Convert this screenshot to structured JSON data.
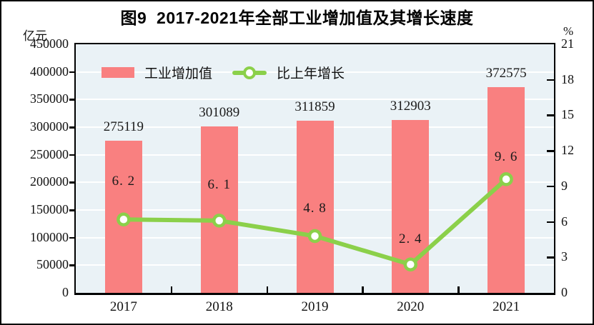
{
  "figure": {
    "title": "图9  2017-2021年全部工业增加值及其增长速度",
    "left_axis_unit": "亿元",
    "right_axis_unit": "%"
  },
  "legend": {
    "items": [
      {
        "label": "工业增加值",
        "marker": "bar-swatch",
        "color": "#f98080"
      },
      {
        "label": "比上年增长",
        "marker": "line-with-dot",
        "color": "#8bd04a"
      }
    ]
  },
  "chart_data": {
    "type": "bar",
    "combo": "bar+line",
    "title": "图9  2017-2021年全部工业增加值及其增长速度",
    "categories": [
      "2017",
      "2018",
      "2019",
      "2020",
      "2021"
    ],
    "series": [
      {
        "name": "工业增加值",
        "type": "bar",
        "axis": "left",
        "unit": "亿元",
        "color": "#f98080",
        "values": [
          275119,
          301089,
          311859,
          312903,
          372575
        ],
        "labels": [
          "275119",
          "301089",
          "311859",
          "312903",
          "372575"
        ]
      },
      {
        "name": "比上年增长",
        "type": "line",
        "axis": "right",
        "unit": "%",
        "color": "#8bd04a",
        "marker": "circle-white-fill",
        "values": [
          6.2,
          6.1,
          4.8,
          2.4,
          9.6
        ],
        "labels": [
          "6. 2",
          "6. 1",
          "4. 8",
          "2. 4",
          "9. 6"
        ]
      }
    ],
    "left_axis": {
      "unit": "亿元",
      "min": 0,
      "max": 450000,
      "step": 50000,
      "ticks": [
        "450000",
        "400000",
        "350000",
        "300000",
        "250000",
        "200000",
        "150000",
        "100000",
        "50000",
        "0"
      ]
    },
    "right_axis": {
      "unit": "%",
      "min": 0,
      "max": 21,
      "step": 3,
      "ticks": [
        "21",
        "18",
        "15",
        "12",
        "9",
        "6",
        "3",
        "0"
      ]
    },
    "grid": true,
    "grid_color": "#ffffff",
    "plot_background": "#eaf2f6",
    "legend_position": "top-left-inside"
  }
}
